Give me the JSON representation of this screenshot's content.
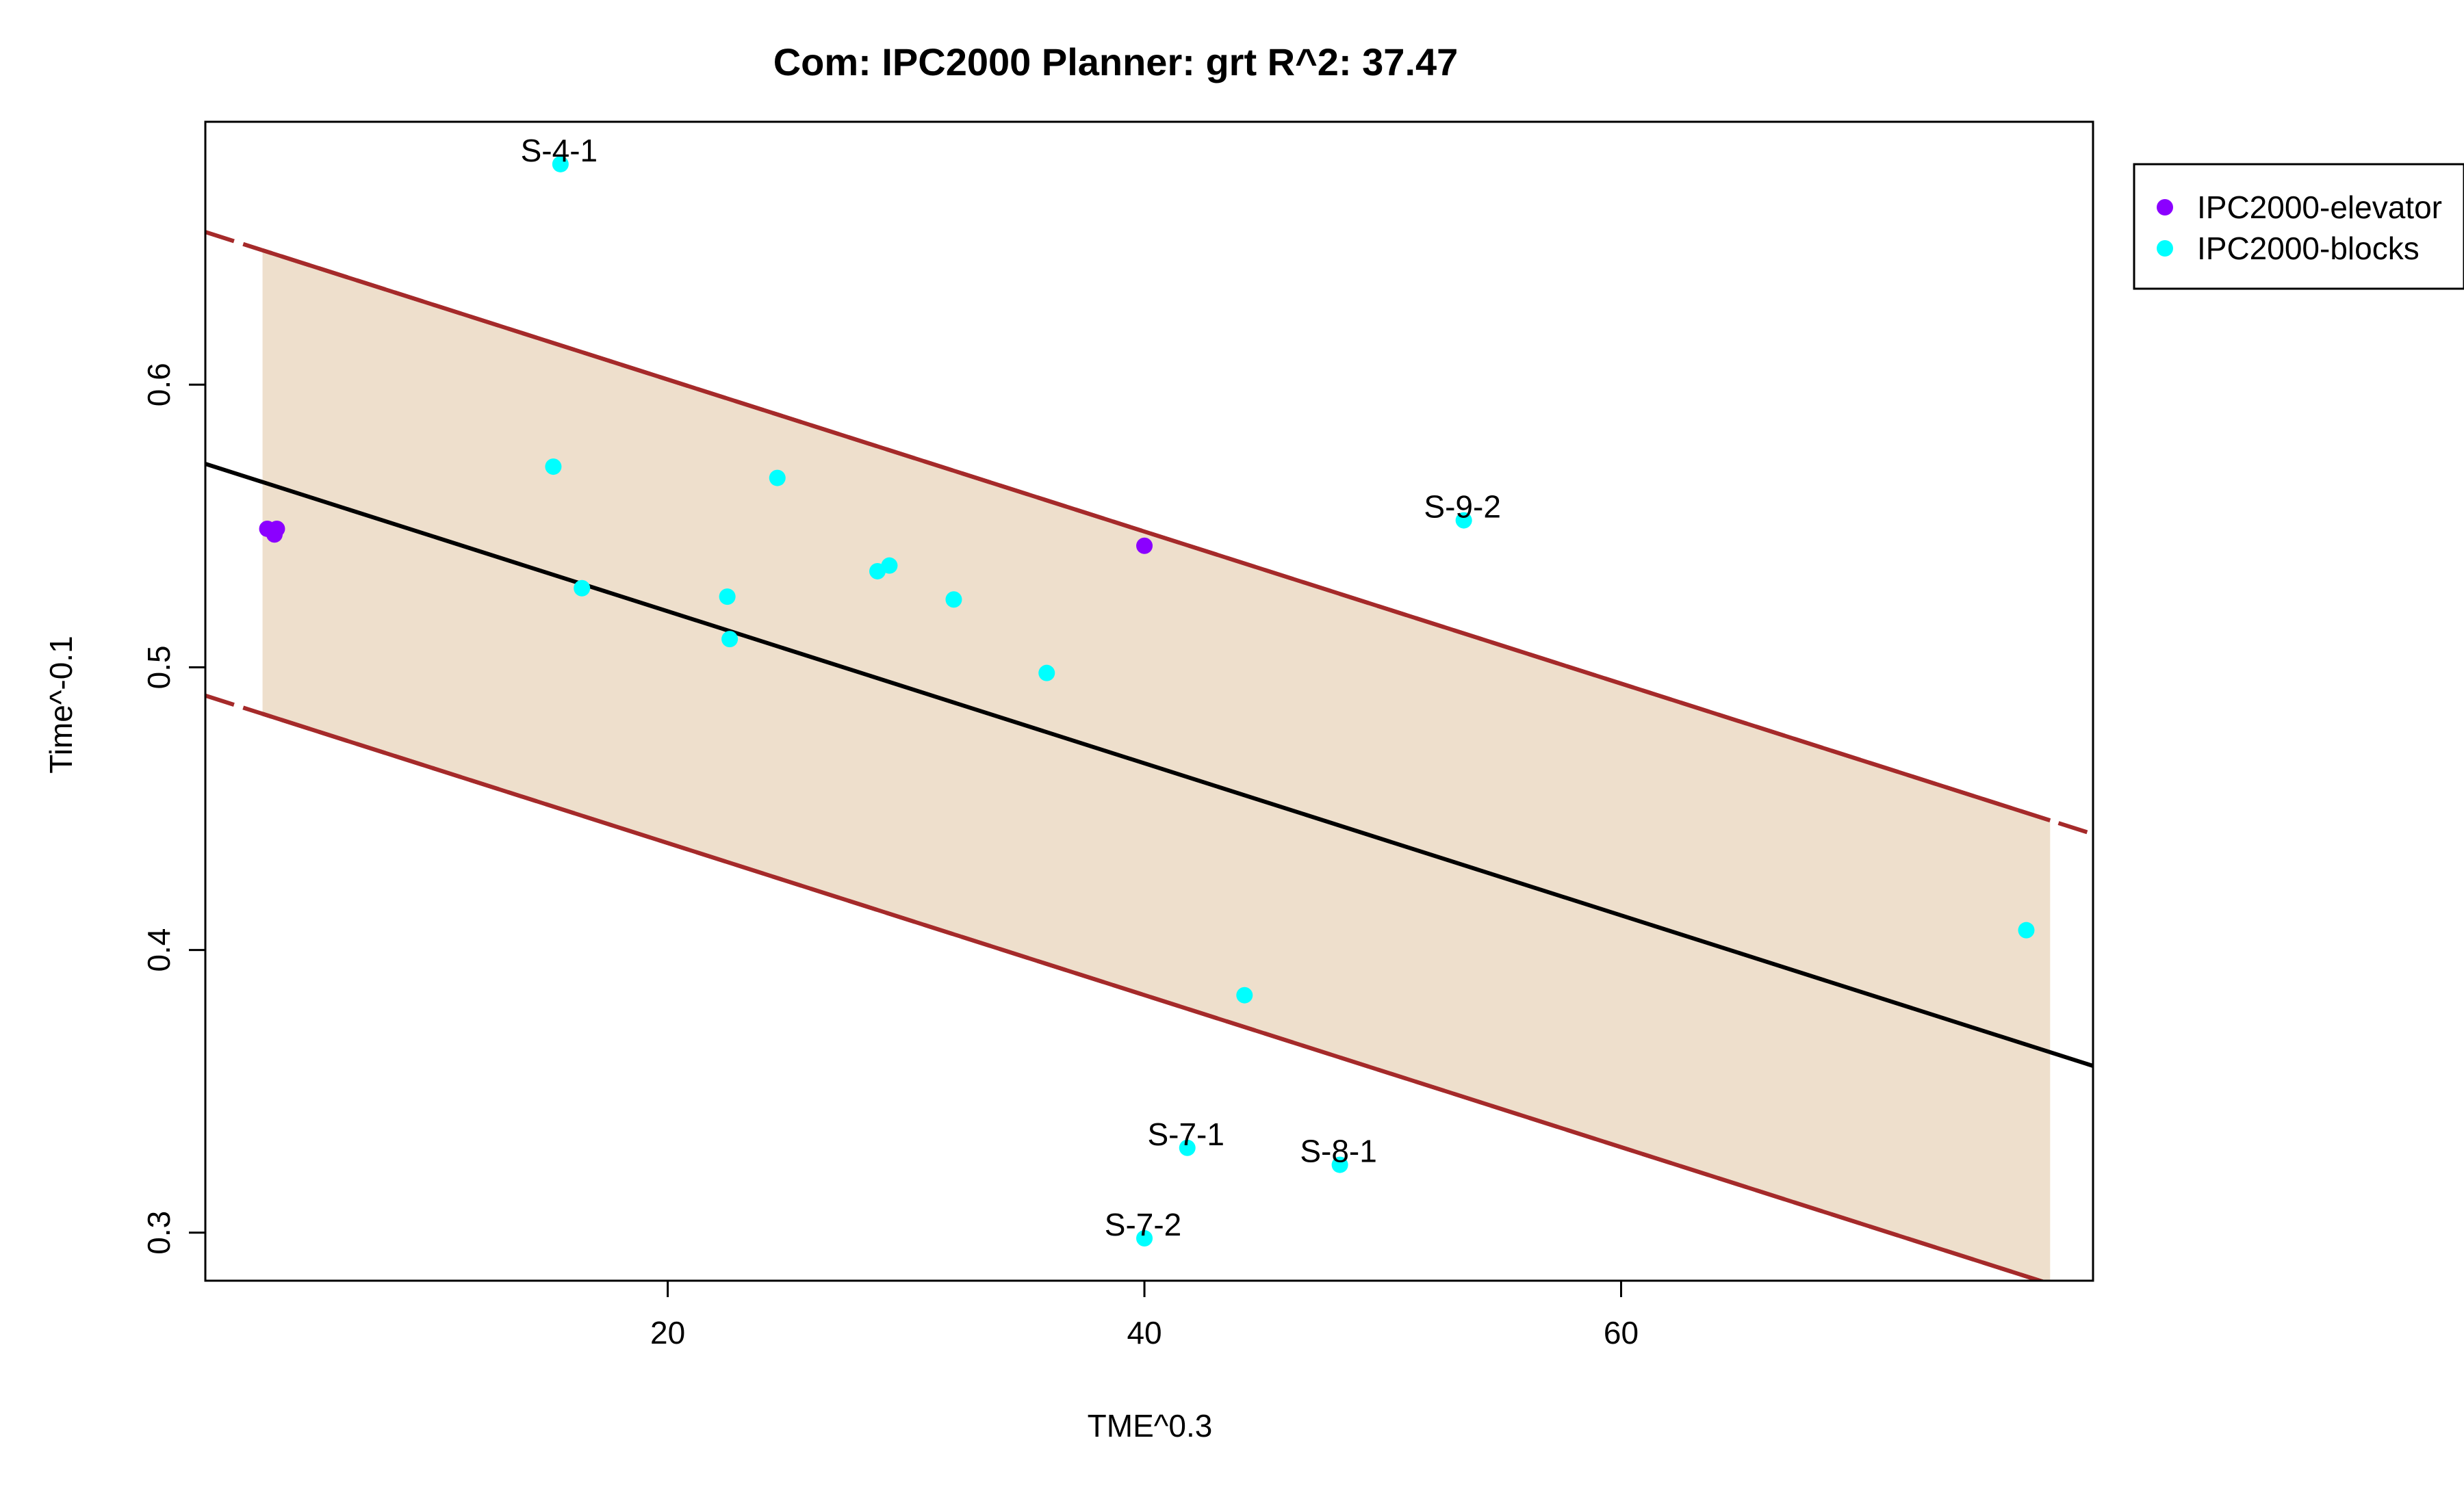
{
  "chart_data": {
    "type": "scatter",
    "title": "Com: IPC2000 Planner: grt R^2: 37.47",
    "xlabel": "TME^0.3",
    "ylabel": "Time^-0.1",
    "xlim": [
      0.6,
      79.8
    ],
    "ylim": [
      0.283,
      0.693
    ],
    "xticks": [
      20,
      40,
      60
    ],
    "yticks": [
      0.3,
      0.4,
      0.5,
      0.6
    ],
    "grid": false,
    "legend_position": "top-right-outside",
    "colors": {
      "elevator": "#8B00FF",
      "blocks": "#00FFFF",
      "fit_line": "#000000",
      "interval": "#A52A2A",
      "band_fill": "#EEDFCC"
    },
    "series": [
      {
        "name": "IPC2000-elevator",
        "color": "#8B00FF",
        "points": [
          {
            "x": 3.2,
            "y": 0.549
          },
          {
            "x": 3.6,
            "y": 0.549
          },
          {
            "x": 3.5,
            "y": 0.547
          },
          {
            "x": 40.0,
            "y": 0.543
          }
        ]
      },
      {
        "name": "IPC2000-blocks",
        "color": "#00FFFF",
        "points": [
          {
            "x": 15.5,
            "y": 0.678,
            "label": "S-4-1"
          },
          {
            "x": 15.2,
            "y": 0.571
          },
          {
            "x": 24.6,
            "y": 0.567
          },
          {
            "x": 16.4,
            "y": 0.528
          },
          {
            "x": 22.5,
            "y": 0.525
          },
          {
            "x": 22.6,
            "y": 0.51
          },
          {
            "x": 28.8,
            "y": 0.534
          },
          {
            "x": 29.3,
            "y": 0.536
          },
          {
            "x": 32.0,
            "y": 0.524
          },
          {
            "x": 35.9,
            "y": 0.498
          },
          {
            "x": 53.4,
            "y": 0.552,
            "label": "S-9-2"
          },
          {
            "x": 77.0,
            "y": 0.407
          },
          {
            "x": 44.2,
            "y": 0.384
          },
          {
            "x": 41.8,
            "y": 0.33,
            "label": "S-7-1"
          },
          {
            "x": 48.2,
            "y": 0.324,
            "label": "S-8-1"
          },
          {
            "x": 40.0,
            "y": 0.298,
            "label": "S-7-2"
          }
        ]
      }
    ],
    "fit_line": {
      "x": [
        0.6,
        79.8
      ],
      "y": [
        0.572,
        0.359
      ]
    },
    "upper_band": {
      "x": [
        0.6,
        79.8
      ],
      "y": [
        0.654,
        0.441
      ]
    },
    "lower_band": {
      "x": [
        0.6,
        79.8
      ],
      "y": [
        0.49,
        0.277
      ]
    },
    "band_x_range": [
      3.0,
      78.0
    ]
  }
}
